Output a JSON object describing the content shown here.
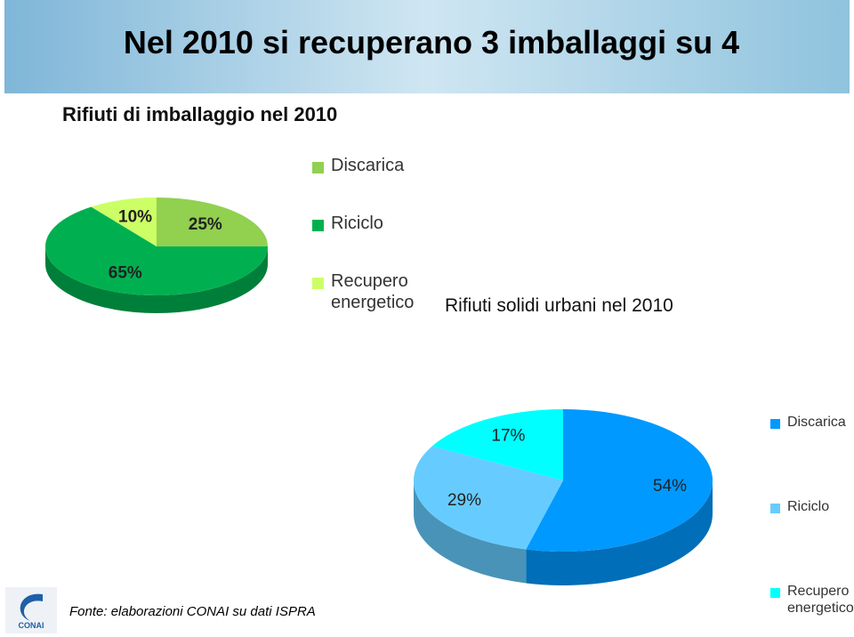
{
  "slide_title": "Nel 2010 si recuperano 3 imballaggi su 4",
  "source": "Fonte: elaborazioni CONAI su dati ISPRA",
  "logo_text": "CONAI",
  "chart_data": [
    {
      "type": "pie",
      "title": "Rifiuti di imballaggio nel 2010",
      "categories": [
        "Discarica",
        "Riciclo",
        "Recupero energetico"
      ],
      "values": [
        25,
        65,
        10
      ],
      "value_labels": [
        "25%",
        "65%",
        "10%"
      ],
      "colors": [
        "#92d050",
        "#00b050",
        "#ccff66"
      ],
      "legend": "right"
    },
    {
      "type": "pie",
      "title": "Rifiuti solidi urbani nel 2010",
      "categories": [
        "Discarica",
        "Riciclo",
        "Recupero energetico"
      ],
      "values": [
        54,
        29,
        17
      ],
      "value_labels": [
        "54%",
        "29%",
        "17%"
      ],
      "colors": [
        "#0099ff",
        "#66ccff",
        "#00ffff"
      ],
      "legend": "right"
    }
  ]
}
